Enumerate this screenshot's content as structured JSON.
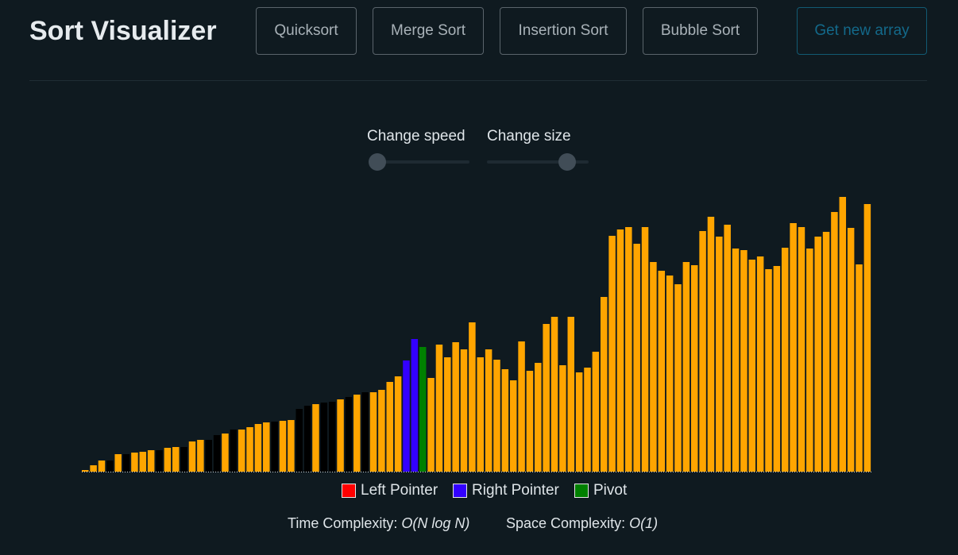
{
  "header": {
    "title": "Sort Visualizer",
    "buttons": {
      "quicksort": "Quicksort",
      "merge_sort": "Merge Sort",
      "insertion_sort": "Insertion Sort",
      "bubble_sort": "Bubble Sort",
      "new_array": "Get new array"
    }
  },
  "controls": {
    "speed_label": "Change speed",
    "size_label": "Change size",
    "speed_value_fraction": 0.0,
    "size_value_fraction": 0.85
  },
  "colors": {
    "background": "#0f1a20",
    "default_bar": "#000000",
    "sorted_bar": "#ffa500",
    "left_pointer": "#ff0000",
    "right_pointer": "#3300ff",
    "pivot": "#008000",
    "accent": "#13698a"
  },
  "legend": {
    "left_pointer": "Left Pointer",
    "right_pointer": "Right Pointer",
    "pivot": "Pivot"
  },
  "complexity": {
    "time_label": "Time Complexity:",
    "time_value": "O(N log N)",
    "space_label": "Space Complexity:",
    "space_value": "O(1)"
  },
  "chart_data": {
    "type": "bar",
    "values": [
      2,
      8,
      14,
      14,
      22,
      22,
      24,
      25,
      27,
      27,
      30,
      31,
      31,
      38,
      40,
      40,
      46,
      48,
      53,
      53,
      56,
      60,
      62,
      63,
      64,
      65,
      79,
      83,
      85,
      87,
      88,
      91,
      94,
      97,
      100,
      100,
      103,
      113,
      120,
      140,
      167,
      157,
      118,
      160,
      144,
      163,
      154,
      188,
      144,
      154,
      141,
      129,
      115,
      164,
      127,
      137,
      186,
      195,
      134,
      195,
      125,
      131,
      151,
      220,
      297,
      305,
      308,
      287,
      308,
      264,
      253,
      247,
      236,
      264,
      260,
      303,
      321,
      296,
      311,
      281,
      279,
      267,
      271,
      255,
      259,
      282,
      313,
      308,
      281,
      296,
      302,
      327,
      346,
      307,
      261,
      337
    ],
    "states": [
      "sorted",
      "sorted",
      "sorted",
      "default",
      "sorted",
      "default",
      "sorted",
      "sorted",
      "sorted",
      "default",
      "sorted",
      "sorted",
      "default",
      "sorted",
      "sorted",
      "default",
      "default",
      "sorted",
      "default",
      "sorted",
      "sorted",
      "sorted",
      "sorted",
      "default",
      "sorted",
      "sorted",
      "default",
      "default",
      "sorted",
      "default",
      "default",
      "sorted",
      "default",
      "sorted",
      "default",
      "sorted",
      "sorted",
      "sorted",
      "sorted",
      "right_pointer",
      "right_pointer",
      "pivot",
      "sorted",
      "sorted",
      "sorted",
      "sorted",
      "sorted",
      "sorted",
      "sorted",
      "sorted",
      "sorted",
      "sorted",
      "sorted",
      "sorted",
      "sorted",
      "sorted",
      "sorted",
      "sorted",
      "sorted",
      "sorted",
      "sorted",
      "sorted",
      "sorted",
      "sorted",
      "sorted",
      "sorted",
      "sorted",
      "sorted",
      "sorted",
      "sorted",
      "sorted",
      "sorted",
      "sorted",
      "sorted",
      "sorted",
      "sorted",
      "sorted",
      "sorted",
      "sorted",
      "sorted",
      "sorted",
      "sorted",
      "sorted",
      "sorted",
      "sorted",
      "sorted",
      "sorted",
      "sorted",
      "sorted",
      "sorted",
      "sorted",
      "sorted",
      "sorted",
      "sorted",
      "sorted",
      "sorted"
    ]
  }
}
